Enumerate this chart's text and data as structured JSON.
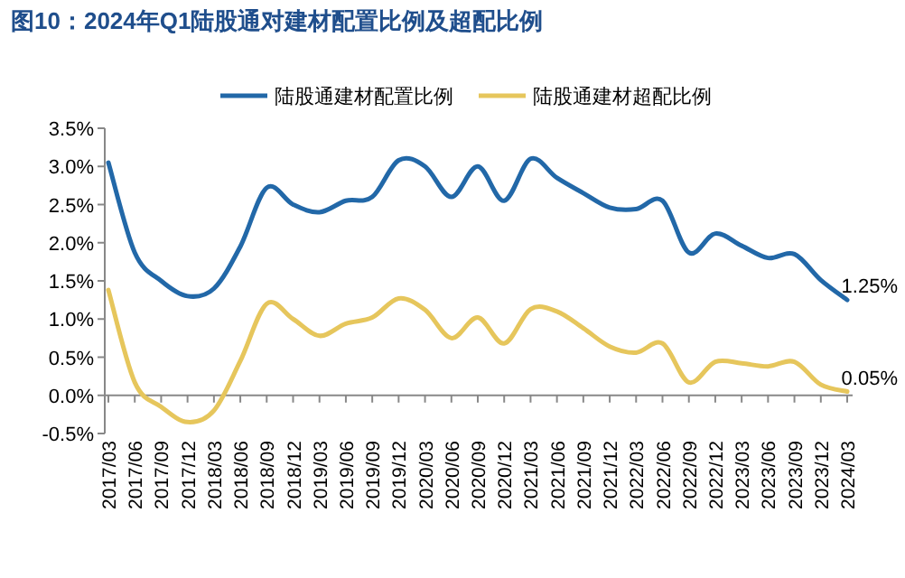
{
  "chart_data": {
    "type": "line",
    "title": "图10：2024年Q1陆股通对建材配置比例及超配比例",
    "categories": [
      "2017/03",
      "2017/06",
      "2017/09",
      "2017/12",
      "2018/03",
      "2018/06",
      "2018/09",
      "2018/12",
      "2019/03",
      "2019/06",
      "2019/09",
      "2019/12",
      "2020/03",
      "2020/06",
      "2020/09",
      "2020/12",
      "2021/03",
      "2021/06",
      "2021/09",
      "2021/12",
      "2022/03",
      "2022/06",
      "2022/09",
      "2022/12",
      "2023/03",
      "2023/06",
      "2023/09",
      "2023/12",
      "2024/03"
    ],
    "series": [
      {
        "name": "陆股通建材配置比例",
        "color": "#2268a8",
        "values": [
          3.05,
          1.87,
          1.5,
          1.3,
          1.4,
          1.95,
          2.72,
          2.5,
          2.4,
          2.55,
          2.6,
          3.08,
          3.0,
          2.6,
          3.0,
          2.55,
          3.1,
          2.85,
          2.65,
          2.46,
          2.44,
          2.55,
          1.87,
          2.12,
          1.96,
          1.8,
          1.85,
          1.51,
          1.25
        ],
        "value_labels": [
          null,
          null,
          null,
          null,
          null,
          null,
          null,
          null,
          null,
          null,
          null,
          null,
          null,
          null,
          null,
          null,
          null,
          null,
          null,
          null,
          null,
          null,
          null,
          null,
          null,
          null,
          null,
          null,
          "1.25%"
        ]
      },
      {
        "name": "陆股通建材超配比例",
        "color": "#e6c65c",
        "values": [
          1.38,
          0.17,
          -0.15,
          -0.35,
          -0.2,
          0.45,
          1.2,
          1.0,
          0.78,
          0.94,
          1.02,
          1.27,
          1.12,
          0.75,
          1.02,
          0.68,
          1.13,
          1.1,
          0.88,
          0.64,
          0.56,
          0.68,
          0.17,
          0.44,
          0.42,
          0.38,
          0.44,
          0.14,
          0.05
        ],
        "value_labels": [
          null,
          null,
          null,
          null,
          null,
          null,
          null,
          null,
          null,
          null,
          null,
          null,
          null,
          null,
          null,
          null,
          null,
          null,
          null,
          null,
          null,
          null,
          null,
          null,
          null,
          null,
          null,
          null,
          "0.05%"
        ]
      }
    ],
    "ylim": [
      -0.5,
      3.5
    ],
    "yticks": [
      {
        "value": -0.5,
        "label": "-0.5%"
      },
      {
        "value": 0,
        "label": "0.0%"
      },
      {
        "value": 0.5,
        "label": "0.5%"
      },
      {
        "value": 1,
        "label": "1.0%"
      },
      {
        "value": 1.5,
        "label": "1.5%"
      },
      {
        "value": 2,
        "label": "2.0%"
      },
      {
        "value": 2.5,
        "label": "2.5%"
      },
      {
        "value": 3,
        "label": "3.0%"
      },
      {
        "value": 3.5,
        "label": "3.5%"
      }
    ],
    "legend": "top",
    "grid": false,
    "marker": "none",
    "line_style": "solid"
  }
}
